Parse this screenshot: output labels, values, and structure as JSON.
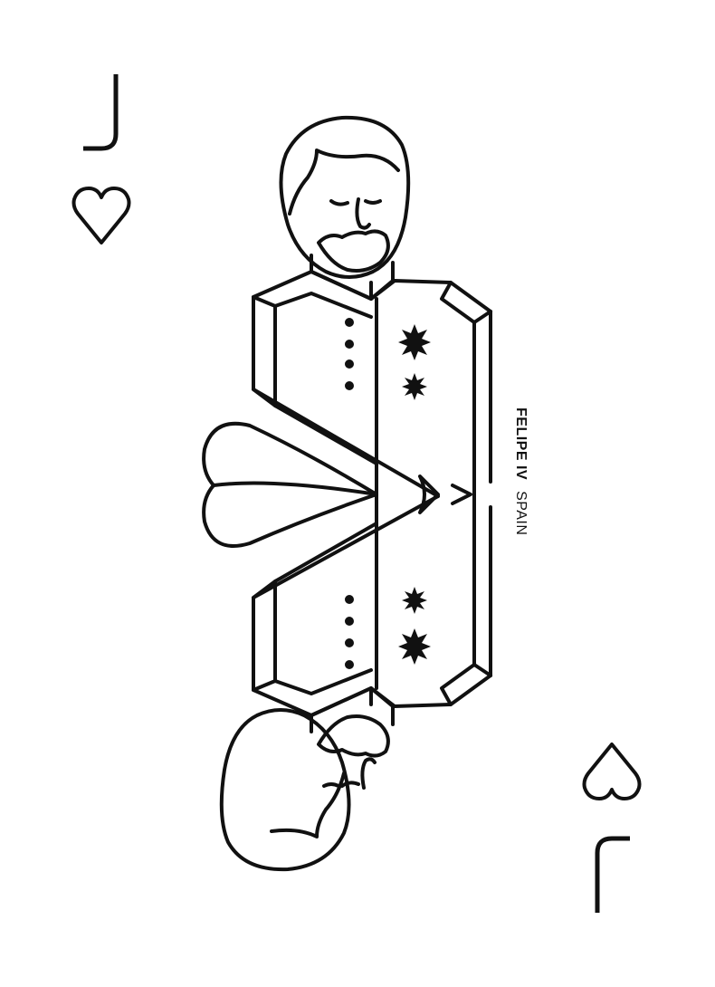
{
  "card": {
    "rank": "J",
    "suit": "heart",
    "suit_icon": "heart-outline-icon",
    "caption_name": "FELIPE IV",
    "caption_country": "SPAIN",
    "ink_color": "#111111",
    "paper_color": "#ffffff"
  }
}
